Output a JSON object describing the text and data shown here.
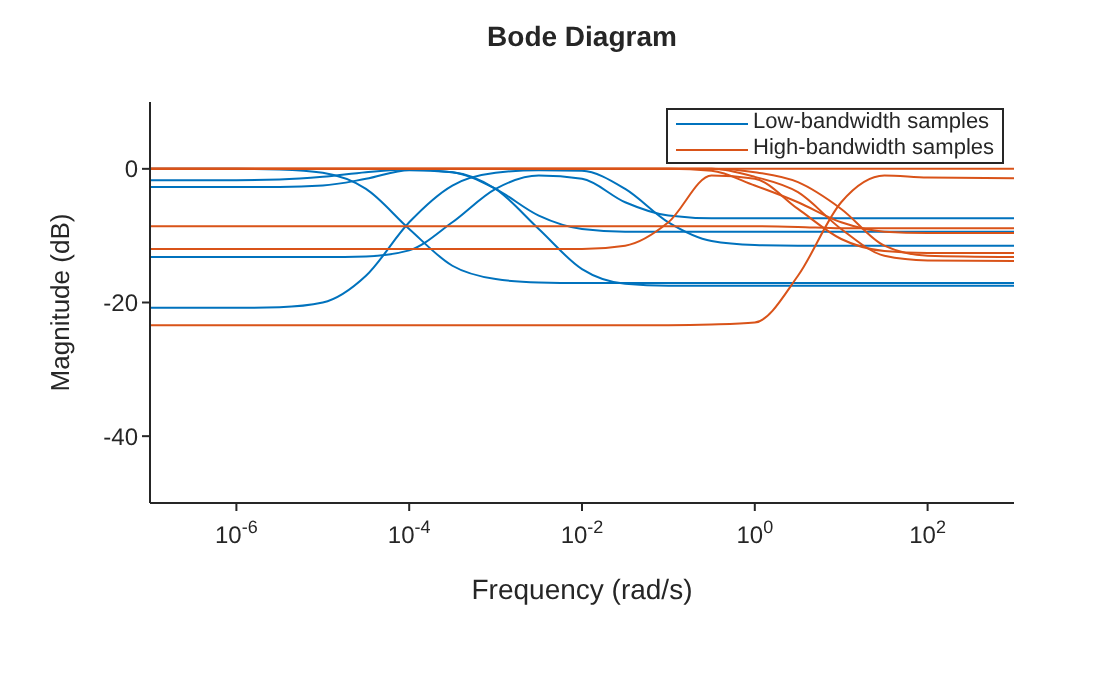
{
  "chart_data": {
    "type": "line",
    "title": "Bode Diagram",
    "xlabel": "Frequency (rad/s)",
    "ylabel": "Magnitude (dB)",
    "log": "x",
    "grid": false,
    "legend": "top right",
    "marker": "none",
    "xlim": [
      1e-07,
      1000
    ],
    "xticks": [
      {
        "value": 1e-06,
        "label": "10$^{-6}$"
      },
      {
        "value": 0.0001,
        "label": "10$^{-4}$"
      },
      {
        "value": 0.01,
        "label": "10$^{-2}$"
      },
      {
        "value": 1,
        "label": "10$^{0}$"
      },
      {
        "value": 100,
        "label": "10$^{2}$"
      }
    ],
    "ylim": [
      -50,
      10
    ],
    "yticks": [
      -40,
      -20,
      0
    ],
    "x": [
      1e-07,
      1e-06,
      3.16e-06,
      1e-05,
      3.16e-05,
      0.0001,
      0.000316,
      0.001,
      0.00316,
      0.01,
      0.0316,
      0.1,
      0.316,
      1,
      3.16,
      10,
      31.6,
      100,
      1000
    ],
    "series": [
      {
        "name": "Low-bandwidth samples",
        "color": "#0072bd",
        "values": [
          0,
          0,
          -0.1,
          -0.6,
          -3,
          -9,
          -14.5,
          -16.5,
          -17,
          -17.1,
          -17.1,
          -17.1,
          -17.1,
          -17.1,
          -17.1,
          -17.1,
          -17.1,
          -17.1,
          -17.1
        ]
      },
      {
        "color": "#0072bd",
        "values": [
          -20.8,
          -20.8,
          -20.7,
          -20,
          -16,
          -8,
          -2.5,
          -0.6,
          -0.2,
          -0.3,
          -3,
          -8,
          -10.8,
          -11.4,
          -11.5,
          -11.5,
          -11.5,
          -11.5,
          -11.5
        ]
      },
      {
        "color": "#0072bd",
        "values": [
          -13.2,
          -13.2,
          -13.2,
          -13.2,
          -13.1,
          -12.2,
          -8,
          -3,
          -1,
          -1.5,
          -5,
          -7,
          -7.4,
          -7.4,
          -7.4,
          -7.4,
          -7.4,
          -7.4,
          -7.4
        ]
      },
      {
        "color": "#0072bd",
        "values": [
          -1.7,
          -1.7,
          -1.6,
          -1.2,
          -0.5,
          -0.1,
          -0.5,
          -3,
          -7,
          -9,
          -9.4,
          -9.4,
          -9.4,
          -9.4,
          -9.4,
          -9.4,
          -9.4,
          -9.4,
          -9.4
        ]
      },
      {
        "color": "#0072bd",
        "values": [
          -2.7,
          -2.7,
          -2.7,
          -2.5,
          -1.5,
          -0.2,
          -0.5,
          -3,
          -9,
          -15,
          -17.2,
          -17.5,
          -17.5,
          -17.5,
          -17.5,
          -17.5,
          -17.5,
          -17.5,
          -17.5
        ]
      },
      {
        "color": "#d95319",
        "values": [
          -8.6,
          -8.6,
          -8.6,
          -8.6,
          -8.6,
          -8.6,
          -8.6,
          -8.6,
          -8.6,
          -8.6,
          -8.6,
          -8.6,
          -8.6,
          -8.6,
          -8.7,
          -8.9,
          -8.9,
          -8.9,
          -8.9
        ]
      },
      {
        "color": "#d95319",
        "values": [
          -12,
          -12,
          -12,
          -12,
          -12,
          -12,
          -12,
          -12,
          -12,
          -12,
          -11.5,
          -8,
          -1,
          -1.5,
          -6,
          -10.5,
          -12.3,
          -12.6,
          -12.6
        ]
      },
      {
        "color": "#d95319",
        "values": [
          -23.4,
          -23.4,
          -23.4,
          -23.4,
          -23.4,
          -23.4,
          -23.4,
          -23.4,
          -23.4,
          -23.4,
          -23.4,
          -23.4,
          -23.3,
          -23,
          -16,
          -5,
          -1,
          -1.3,
          -1.4
        ]
      },
      {
        "color": "#d95319",
        "values": [
          0,
          0,
          0,
          0,
          0,
          0,
          0,
          0,
          0,
          0,
          0,
          0,
          -0.3,
          -2.5,
          -5,
          -8,
          -9.4,
          -9.6,
          -9.6
        ]
      },
      {
        "color": "#d95319",
        "values": [
          0,
          0,
          0,
          0,
          0,
          0,
          0,
          0,
          0,
          0,
          0,
          0,
          0,
          -1.2,
          -3.5,
          -9,
          -13,
          -13.7,
          -13.8
        ]
      },
      {
        "color": "#d95319",
        "values": [
          0,
          0,
          0,
          0,
          0,
          0,
          0,
          0,
          0,
          0,
          0,
          0,
          0,
          -0.5,
          -2,
          -6,
          -11.5,
          -13,
          -13.2
        ]
      },
      {
        "name": "High-bandwidth samples",
        "color": "#d95319",
        "values": [
          0,
          0,
          0,
          0,
          0,
          0,
          0,
          0,
          0,
          0,
          0,
          0,
          0,
          0,
          0,
          0,
          0,
          0,
          0
        ]
      }
    ]
  }
}
